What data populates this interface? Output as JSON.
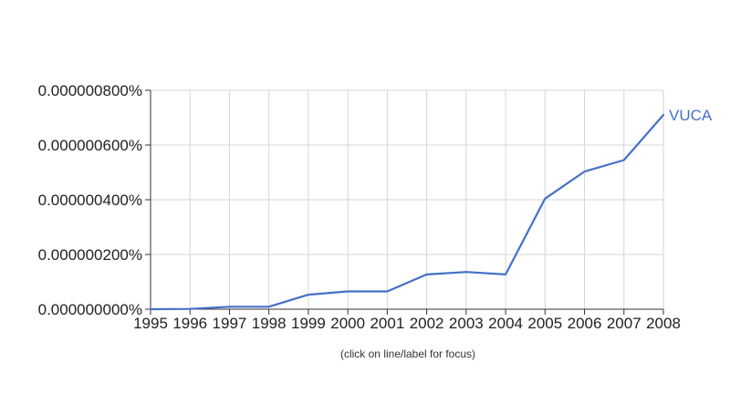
{
  "chart_data": {
    "type": "line",
    "x": [
      1995,
      1996,
      1997,
      1998,
      1999,
      2000,
      2001,
      2002,
      2003,
      2004,
      2005,
      2006,
      2007,
      2008
    ],
    "series": [
      {
        "name": "VUCA",
        "color": "#4470c8",
        "values": [
          0.0,
          0.001,
          0.009,
          0.009,
          0.053,
          0.065,
          0.065,
          0.127,
          0.136,
          0.127,
          0.404,
          0.503,
          0.545,
          0.71
        ]
      }
    ],
    "x_ticks": [
      "1995",
      "1996",
      "1997",
      "1998",
      "1999",
      "2000",
      "2001",
      "2002",
      "2003",
      "2004",
      "2005",
      "2006",
      "2007",
      "2008"
    ],
    "y_ticks": [
      0,
      0.2,
      0.4,
      0.6,
      0.8
    ],
    "y_tick_labels": [
      "0.000000000%",
      "0.000000200%",
      "0.000000400%",
      "0.000000600%",
      "0.000000800%"
    ],
    "y_unit_note": "values in millionths of a percent (1e-6 %)",
    "ylim": [
      0,
      0.8
    ],
    "xlim": [
      1995,
      2008
    ],
    "grid": true,
    "legend": "line-end label",
    "title": "",
    "xlabel": "",
    "ylabel": ""
  },
  "footer": {
    "hint": "(click on line/label for focus)"
  }
}
